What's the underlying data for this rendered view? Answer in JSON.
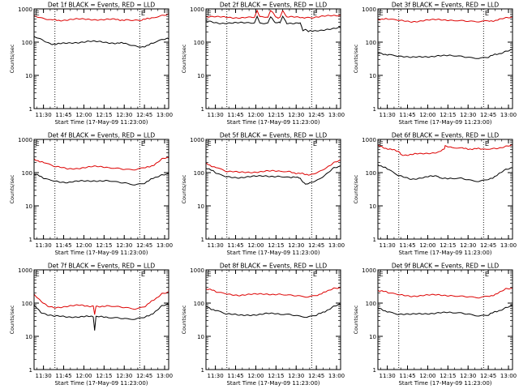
{
  "common": {
    "ylabel": "Counts/sec",
    "xlabel": "Start Time (17-May-09 11:23:00)",
    "x_ticks": [
      "11:30",
      "11:45",
      "12:00",
      "12:15",
      "12:30",
      "12:45",
      "13:00"
    ],
    "y_ticks": [
      "1",
      "10",
      "100",
      "1000"
    ],
    "marker": "E",
    "colors": {
      "events": "#000000",
      "lld": "#dd0000",
      "markers": "#000000"
    }
  },
  "chart_data": [
    {
      "type": "line",
      "title": "Det 1f BLACK = Events, RED = LLD",
      "x_unit": "minutes after 11:23:00",
      "xlim": [
        0,
        100
      ],
      "ylim": [
        1,
        1000
      ],
      "yscale": "log",
      "dotted_lines_x": [
        15.5,
        78.5
      ],
      "markers_x": [
        2.5,
        81
      ],
      "series": [
        {
          "name": "Events",
          "color": "#000000",
          "x": [
            0,
            6,
            12,
            20,
            30,
            40,
            50,
            60,
            68,
            74,
            80,
            88,
            95,
            100
          ],
          "values": [
            150,
            118,
            90,
            88,
            98,
            105,
            100,
            95,
            90,
            78,
            72,
            90,
            115,
            125
          ]
        },
        {
          "name": "LLD",
          "color": "#dd0000",
          "x": [
            0,
            6,
            12,
            20,
            30,
            40,
            50,
            60,
            68,
            74,
            80,
            88,
            95,
            100
          ],
          "values": [
            620,
            520,
            460,
            460,
            480,
            490,
            480,
            475,
            470,
            450,
            450,
            560,
            650,
            720
          ]
        }
      ]
    },
    {
      "type": "line",
      "title": "Det 2f BLACK = Events, RED = LLD",
      "x_unit": "minutes after 11:23:00",
      "xlim": [
        0,
        100
      ],
      "ylim": [
        1,
        1000
      ],
      "yscale": "log",
      "dotted_lines_x": [
        15.5,
        78.5
      ],
      "markers_x": [
        2.5,
        81
      ],
      "series": [
        {
          "name": "Events",
          "color": "#000000",
          "x": [
            0,
            10,
            20,
            30,
            36,
            38,
            40,
            46,
            48,
            52,
            55,
            57,
            60,
            70,
            72,
            74,
            76,
            80,
            90,
            100
          ],
          "values": [
            430,
            380,
            370,
            380,
            380,
            600,
            380,
            380,
            600,
            380,
            380,
            600,
            380,
            380,
            230,
            230,
            210,
            210,
            250,
            270
          ]
        },
        {
          "name": "LLD",
          "color": "#dd0000",
          "x": [
            0,
            10,
            20,
            30,
            36,
            38,
            40,
            46,
            48,
            52,
            55,
            57,
            60,
            70,
            74,
            80,
            90,
            100
          ],
          "values": [
            600,
            560,
            550,
            560,
            560,
            900,
            560,
            560,
            900,
            560,
            560,
            900,
            560,
            560,
            560,
            560,
            600,
            650
          ]
        }
      ]
    },
    {
      "type": "line",
      "title": "Det 3f BLACK = Events, RED = LLD",
      "x_unit": "minutes after 11:23:00",
      "xlim": [
        0,
        100
      ],
      "ylim": [
        1,
        1000
      ],
      "yscale": "log",
      "dotted_lines_x": [
        15.5,
        78.5
      ],
      "markers_x": [
        2.5,
        81
      ],
      "series": [
        {
          "name": "Events",
          "color": "#000000",
          "x": [
            0,
            8,
            15,
            25,
            35,
            45,
            55,
            62,
            68,
            75,
            82,
            90,
            95,
            100
          ],
          "values": [
            45,
            43,
            40,
            34,
            36,
            40,
            38,
            36,
            33,
            32,
            36,
            45,
            55,
            60
          ]
        },
        {
          "name": "LLD",
          "color": "#dd0000",
          "x": [
            0,
            8,
            15,
            25,
            35,
            45,
            55,
            62,
            68,
            75,
            82,
            90,
            95,
            100
          ],
          "values": [
            500,
            480,
            440,
            420,
            450,
            470,
            470,
            460,
            440,
            420,
            430,
            470,
            520,
            560
          ]
        }
      ]
    },
    {
      "type": "line",
      "title": "Det 4f BLACK = Events, RED = LLD",
      "x_unit": "minutes after 11:23:00",
      "xlim": [
        0,
        100
      ],
      "ylim": [
        1,
        1000
      ],
      "yscale": "log",
      "dotted_lines_x": [
        15.5,
        78.5
      ],
      "markers_x": [
        2.5,
        81
      ],
      "series": [
        {
          "name": "Events",
          "color": "#000000",
          "x": [
            0,
            8,
            15,
            25,
            35,
            45,
            55,
            62,
            68,
            75,
            82,
            90,
            95,
            100
          ],
          "values": [
            90,
            68,
            58,
            50,
            55,
            58,
            56,
            52,
            48,
            44,
            50,
            70,
            88,
            95
          ]
        },
        {
          "name": "LLD",
          "color": "#dd0000",
          "x": [
            0,
            8,
            15,
            25,
            35,
            45,
            55,
            62,
            68,
            75,
            82,
            90,
            95,
            100
          ],
          "values": [
            260,
            190,
            150,
            130,
            140,
            150,
            145,
            135,
            125,
            120,
            135,
            180,
            250,
            280
          ]
        }
      ]
    },
    {
      "type": "line",
      "title": "Det 5f BLACK = Events, RED = LLD",
      "x_unit": "minutes after 11:23:00",
      "xlim": [
        0,
        100
      ],
      "ylim": [
        1,
        1000
      ],
      "yscale": "log",
      "dotted_lines_x": [
        15.5,
        78.5
      ],
      "markers_x": [
        2.5,
        81
      ],
      "series": [
        {
          "name": "Events",
          "color": "#000000",
          "x": [
            0,
            8,
            15,
            25,
            35,
            45,
            55,
            62,
            70,
            72,
            74,
            78,
            84,
            90,
            95,
            100
          ],
          "values": [
            140,
            95,
            75,
            72,
            75,
            80,
            78,
            74,
            68,
            50,
            45,
            48,
            60,
            90,
            140,
            160
          ]
        },
        {
          "name": "LLD",
          "color": "#dd0000",
          "x": [
            0,
            8,
            15,
            25,
            35,
            45,
            55,
            62,
            70,
            74,
            78,
            84,
            90,
            95,
            100
          ],
          "values": [
            190,
            140,
            110,
            100,
            105,
            110,
            108,
            104,
            95,
            85,
            90,
            110,
            150,
            200,
            230
          ]
        }
      ]
    },
    {
      "type": "line",
      "title": "Det 6f BLACK = Events, RED = LLD",
      "x_unit": "minutes after 11:23:00",
      "xlim": [
        0,
        100
      ],
      "ylim": [
        1,
        1000
      ],
      "yscale": "log",
      "dotted_lines_x": [
        15.5,
        78.5
      ],
      "markers_x": [
        2.5,
        81
      ],
      "series": [
        {
          "name": "Events",
          "color": "#000000",
          "x": [
            0,
            8,
            15,
            25,
            35,
            44,
            46,
            55,
            62,
            68,
            75,
            82,
            90,
            95,
            100
          ],
          "values": [
            180,
            120,
            80,
            65,
            72,
            80,
            65,
            70,
            70,
            62,
            55,
            62,
            90,
            120,
            140
          ]
        },
        {
          "name": "LLD",
          "color": "#dd0000",
          "x": [
            0,
            8,
            16,
            17,
            30,
            45,
            49,
            50,
            55,
            62,
            70,
            78,
            85,
            90,
            95,
            100
          ],
          "values": [
            640,
            520,
            420,
            340,
            360,
            420,
            480,
            620,
            540,
            530,
            520,
            510,
            520,
            560,
            640,
            680
          ]
        }
      ]
    },
    {
      "type": "line",
      "title": "Det 7f BLACK = Events, RED = LLD",
      "x_unit": "minutes after 11:23:00",
      "xlim": [
        0,
        100
      ],
      "ylim": [
        1,
        1000
      ],
      "yscale": "log",
      "dotted_lines_x": [
        15.5,
        78.5
      ],
      "markers_x": [
        2.5,
        81
      ],
      "series": [
        {
          "name": "Events",
          "color": "#000000",
          "x": [
            0,
            5,
            10,
            15,
            25,
            35,
            44,
            45,
            46,
            55,
            62,
            68,
            75,
            82,
            90,
            95,
            100
          ],
          "values": [
            90,
            55,
            45,
            40,
            38,
            40,
            38,
            15,
            38,
            38,
            36,
            34,
            32,
            36,
            55,
            80,
            90
          ]
        },
        {
          "name": "LLD",
          "color": "#dd0000",
          "x": [
            0,
            5,
            10,
            15,
            25,
            35,
            44,
            45,
            46,
            55,
            62,
            68,
            75,
            82,
            90,
            95,
            100
          ],
          "values": [
            180,
            110,
            80,
            75,
            80,
            85,
            82,
            45,
            82,
            80,
            78,
            72,
            68,
            80,
            130,
            200,
            220
          ]
        }
      ]
    },
    {
      "type": "line",
      "title": "Det 8f BLACK = Events, RED = LLD",
      "x_unit": "minutes after 11:23:00",
      "xlim": [
        0,
        100
      ],
      "ylim": [
        1,
        1000
      ],
      "yscale": "log",
      "dotted_lines_x": [
        15.5,
        78.5
      ],
      "markers_x": [
        2.5,
        81
      ],
      "series": [
        {
          "name": "Events",
          "color": "#000000",
          "x": [
            0,
            8,
            15,
            25,
            35,
            45,
            55,
            62,
            68,
            75,
            82,
            90,
            95,
            100
          ],
          "values": [
            80,
            58,
            48,
            42,
            45,
            48,
            46,
            44,
            40,
            36,
            42,
            62,
            80,
            90
          ]
        },
        {
          "name": "LLD",
          "color": "#dd0000",
          "x": [
            0,
            8,
            15,
            25,
            35,
            45,
            55,
            62,
            68,
            75,
            82,
            90,
            95,
            100
          ],
          "values": [
            270,
            220,
            190,
            175,
            180,
            190,
            185,
            180,
            170,
            160,
            175,
            220,
            280,
            300
          ]
        }
      ]
    },
    {
      "type": "line",
      "title": "Det 9f BLACK = Events, RED = LLD",
      "x_unit": "minutes after 11:23:00",
      "xlim": [
        0,
        100
      ],
      "ylim": [
        1,
        1000
      ],
      "yscale": "log",
      "dotted_lines_x": [
        15.5,
        78.5
      ],
      "markers_x": [
        2.5,
        81
      ],
      "series": [
        {
          "name": "Events",
          "color": "#000000",
          "x": [
            0,
            8,
            15,
            25,
            35,
            45,
            55,
            62,
            68,
            75,
            82,
            90,
            95,
            100
          ],
          "values": [
            70,
            55,
            48,
            45,
            48,
            52,
            50,
            48,
            44,
            40,
            44,
            60,
            75,
            85
          ]
        },
        {
          "name": "LLD",
          "color": "#dd0000",
          "x": [
            0,
            8,
            15,
            25,
            35,
            45,
            55,
            62,
            68,
            75,
            82,
            90,
            95,
            100
          ],
          "values": [
            250,
            200,
            175,
            165,
            170,
            175,
            172,
            168,
            160,
            150,
            160,
            200,
            260,
            280
          ]
        }
      ]
    }
  ]
}
